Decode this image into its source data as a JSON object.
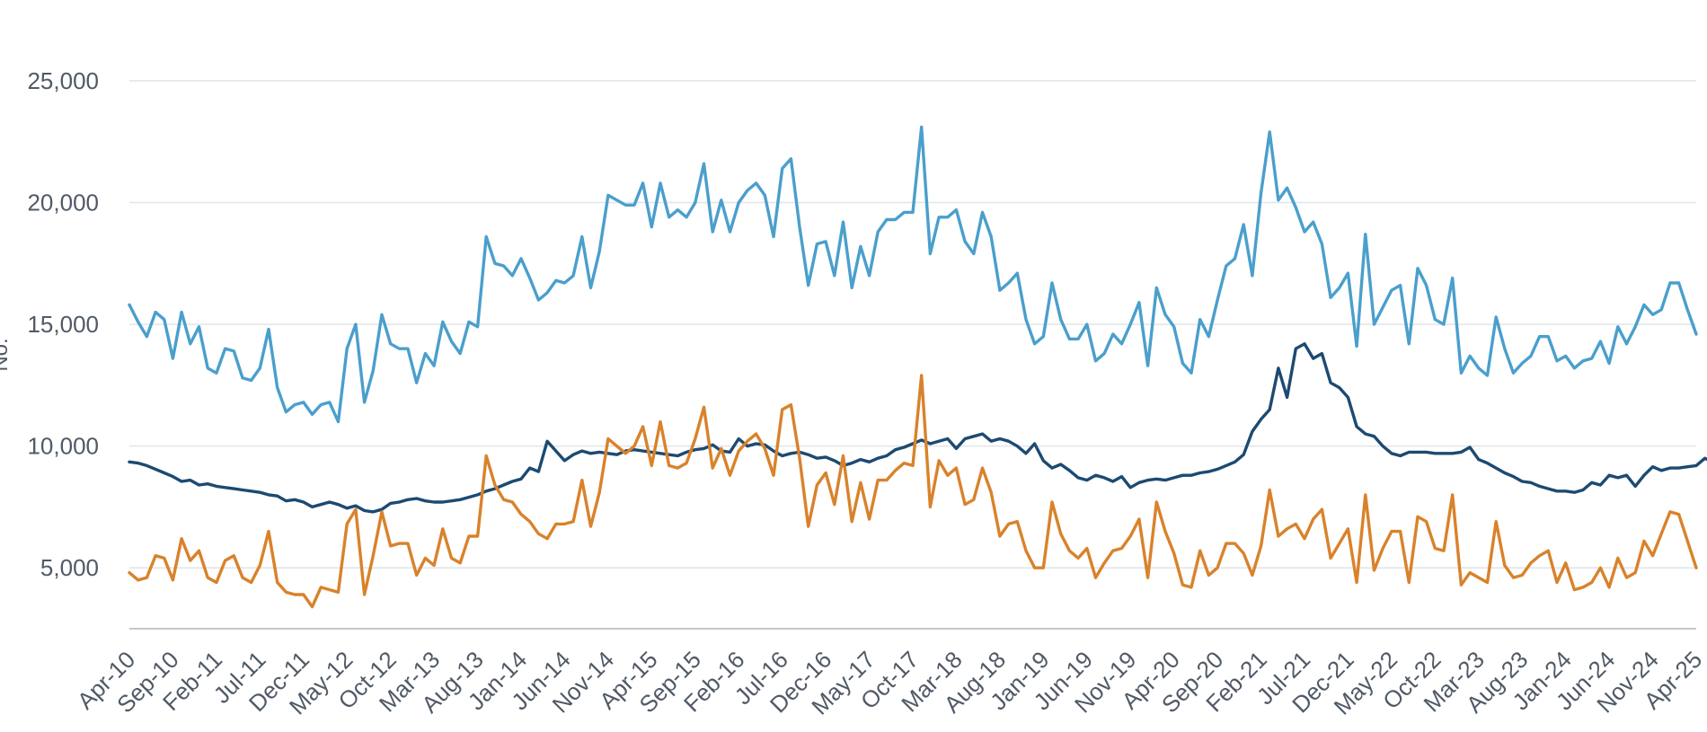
{
  "chart_data": {
    "type": "line",
    "title": "",
    "xlabel": "",
    "ylabel": "No.",
    "ylim": [
      2500,
      25000
    ],
    "y_ticks": [
      5000,
      10000,
      15000,
      20000,
      25000
    ],
    "y_tick_labels": [
      "5,000",
      "10,000",
      "15,000",
      "20,000",
      "25,000"
    ],
    "x_tick_labels": [
      "Apr-10",
      "Sep-10",
      "Feb-11",
      "Jul-11",
      "Dec-11",
      "May-12",
      "Oct-12",
      "Mar-13",
      "Aug-13",
      "Jan-14",
      "Jun-14",
      "Nov-14",
      "Apr-15",
      "Sep-15",
      "Feb-16",
      "Jul-16",
      "Dec-16",
      "May-17",
      "Oct-17",
      "Mar-18",
      "Aug-18",
      "Jan-19",
      "Jun-19",
      "Nov-19",
      "Apr-20",
      "Sep-20",
      "Feb-21",
      "Jul-21",
      "Dec-21",
      "May-22",
      "Oct-22",
      "Mar-23",
      "Aug-23",
      "Jan-24",
      "Jun-24",
      "Nov-24",
      "Apr-25"
    ],
    "x_start": "Apr-10",
    "x_end": "Apr-25",
    "grid": true,
    "legend": "none",
    "series": [
      {
        "color": "#4a9fcc",
        "values": [
          15800,
          15100,
          14500,
          15500,
          15200,
          13600,
          15500,
          14200,
          14900,
          13200,
          13000,
          14000,
          13900,
          12800,
          12700,
          13200,
          14800,
          12400,
          11400,
          11700,
          11800,
          11300,
          11700,
          11800,
          11000,
          14000,
          15000,
          11800,
          13100,
          15400,
          14200,
          14000,
          14000,
          12600,
          13800,
          13300,
          15100,
          14300,
          13800,
          15100,
          14900,
          18600,
          17500,
          17400,
          17000,
          17700,
          16900,
          16000,
          16300,
          16800,
          16700,
          17000,
          18600,
          16500,
          18000,
          20300,
          20100,
          19900,
          19900,
          20800,
          19000,
          20800,
          19400,
          19700,
          19400,
          20000,
          21600,
          18800,
          20100,
          18800,
          20000,
          20500,
          20800,
          20300,
          18600,
          21400,
          21800,
          19000,
          16600,
          18300,
          18400,
          17000,
          19200,
          16500,
          18200,
          17000,
          18800,
          19300,
          19300,
          19600,
          19600,
          23100,
          17900,
          19400,
          19400,
          19700,
          18400,
          17900,
          19600,
          18600,
          16400,
          16700,
          17100,
          15200,
          14200,
          14500,
          16700,
          15200,
          14400,
          14400,
          15000,
          13500,
          13800,
          14600,
          14200,
          15000,
          15900,
          13300,
          16500,
          15400,
          14900,
          13400,
          13000,
          15200,
          14500,
          16000,
          17400,
          17700,
          19100,
          17000,
          20400,
          22900,
          20100,
          20600,
          19800,
          18800,
          19200,
          18300,
          16100,
          16500,
          17100,
          14100,
          18700,
          15000,
          15700,
          16400,
          16600,
          14200,
          17300,
          16600,
          15200,
          15000,
          16900,
          13000,
          13700,
          13200,
          12900,
          15300,
          14000,
          13000,
          13400,
          13700,
          14500,
          14500,
          13500,
          13700,
          13200,
          13500,
          13600,
          14300,
          13400,
          14900,
          14200,
          14900,
          15800,
          15400,
          15600,
          16700,
          16700,
          15600,
          14600
        ]
      },
      {
        "color": "#1c4a72",
        "values": [
          9350,
          9300,
          9200,
          9050,
          8900,
          8750,
          8550,
          8600,
          8400,
          8450,
          8350,
          8300,
          8250,
          8200,
          8150,
          8100,
          8000,
          7950,
          7750,
          7800,
          7700,
          7500,
          7600,
          7700,
          7600,
          7450,
          7550,
          7350,
          7300,
          7400,
          7650,
          7700,
          7800,
          7850,
          7750,
          7700,
          7700,
          7750,
          7800,
          7900,
          8000,
          8150,
          8250,
          8400,
          8550,
          8650,
          9100,
          8950,
          10200,
          9800,
          9400,
          9650,
          9800,
          9700,
          9750,
          9700,
          9650,
          9800,
          9850,
          9800,
          9750,
          9700,
          9650,
          9600,
          9750,
          9850,
          9900,
          10050,
          9800,
          9750,
          10300,
          10000,
          10100,
          10050,
          9800,
          9600,
          9700,
          9750,
          9650,
          9500,
          9550,
          9400,
          9200,
          9300,
          9450,
          9350,
          9500,
          9600,
          9850,
          9950,
          10100,
          10250,
          10100,
          10200,
          10300,
          9900,
          10300,
          10400,
          10500,
          10200,
          10300,
          10200,
          10000,
          9700,
          10100,
          9400,
          9100,
          9250,
          9000,
          8700,
          8600,
          8800,
          8700,
          8550,
          8750,
          8300,
          8500,
          8600,
          8650,
          8600,
          8700,
          8800,
          8800,
          8900,
          8950,
          9050,
          9200,
          9350,
          9650,
          10600,
          11100,
          11500,
          13200,
          12000,
          14000,
          14200,
          13600,
          13800,
          12600,
          12400,
          12000,
          10800,
          10500,
          10400,
          10000,
          9700,
          9600,
          9750,
          9750,
          9750,
          9700,
          9700,
          9700,
          9750,
          9950,
          9450,
          9300,
          9100,
          8900,
          8750,
          8550,
          8500,
          8350,
          8250,
          8150,
          8150,
          8100,
          8200,
          8500,
          8400,
          8800,
          8700,
          8800,
          8350,
          8800,
          9150,
          9000,
          9100,
          9100,
          9150,
          9200,
          9500,
          9300,
          9200,
          9050,
          9150,
          9250,
          9100,
          9350
        ]
      },
      {
        "color": "#d9822b",
        "values": [
          4800,
          4500,
          4600,
          5500,
          5400,
          4500,
          6200,
          5300,
          5700,
          4600,
          4400,
          5300,
          5500,
          4600,
          4400,
          5100,
          6500,
          4400,
          4000,
          3900,
          3900,
          3400,
          4200,
          4100,
          4000,
          6800,
          7400,
          3900,
          5500,
          7300,
          5900,
          6000,
          6000,
          4700,
          5400,
          5100,
          6600,
          5400,
          5200,
          6300,
          6300,
          9600,
          8400,
          7800,
          7700,
          7200,
          6900,
          6400,
          6200,
          6800,
          6800,
          6900,
          8600,
          6700,
          8100,
          10300,
          10000,
          9700,
          10000,
          10800,
          9200,
          11000,
          9200,
          9100,
          9300,
          10300,
          11600,
          9100,
          9900,
          8800,
          9800,
          10200,
          10500,
          9900,
          8800,
          11500,
          11700,
          9500,
          6700,
          8400,
          8900,
          7600,
          9600,
          6900,
          8500,
          7000,
          8600,
          8600,
          9000,
          9300,
          9200,
          12900,
          7500,
          9400,
          8800,
          9100,
          7600,
          7800,
          9100,
          8100,
          6300,
          6800,
          6900,
          5700,
          5000,
          5000,
          7700,
          6400,
          5700,
          5400,
          5800,
          4600,
          5200,
          5700,
          5800,
          6300,
          7000,
          4600,
          7700,
          6500,
          5600,
          4300,
          4200,
          5700,
          4700,
          5000,
          6000,
          6000,
          5600,
          4700,
          5900,
          8200,
          6300,
          6600,
          6800,
          6200,
          7000,
          7400,
          5400,
          6000,
          6600,
          4400,
          8000,
          4900,
          5800,
          6500,
          6500,
          4400,
          7100,
          6900,
          5800,
          5700,
          8000,
          4300,
          4800,
          4600,
          4400,
          6900,
          5100,
          4600,
          4700,
          5200,
          5500,
          5700,
          4400,
          5200,
          4100,
          4200,
          4400,
          5000,
          4200,
          5400,
          4600,
          4800,
          6100,
          5500,
          6400,
          7300,
          7200,
          6100,
          5000
        ]
      }
    ]
  }
}
